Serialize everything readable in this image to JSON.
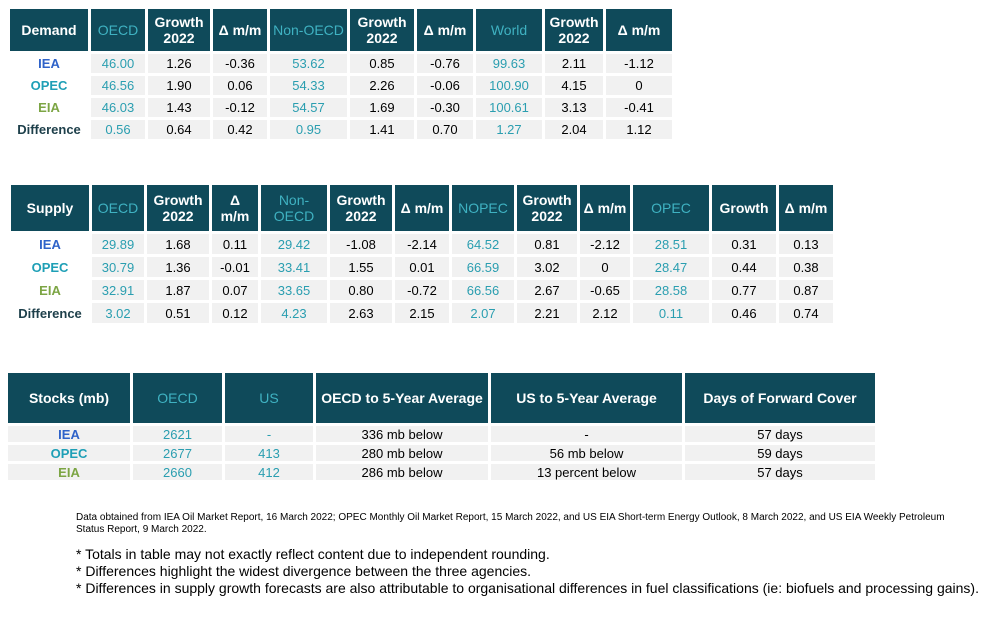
{
  "demand": {
    "headers": [
      "Demand",
      "OECD",
      "Growth 2022",
      "Δ m/m",
      "Non-OECD",
      "Growth 2022",
      "Δ m/m",
      "World",
      "Growth 2022",
      "Δ m/m"
    ],
    "rows": [
      {
        "label": "IEA",
        "values": [
          "46.00",
          "1.26",
          "-0.36",
          "53.62",
          "0.85",
          "-0.76",
          "99.63",
          "2.11",
          "-1.12"
        ]
      },
      {
        "label": "OPEC",
        "values": [
          "46.56",
          "1.90",
          "0.06",
          "54.33",
          "2.26",
          "-0.06",
          "100.90",
          "4.15",
          "0"
        ]
      },
      {
        "label": "EIA",
        "values": [
          "46.03",
          "1.43",
          "-0.12",
          "54.57",
          "1.69",
          "-0.30",
          "100.61",
          "3.13",
          "-0.41"
        ]
      },
      {
        "label": "Difference",
        "values": [
          "0.56",
          "0.64",
          "0.42",
          "0.95",
          "1.41",
          "0.70",
          "1.27",
          "2.04",
          "1.12"
        ]
      }
    ]
  },
  "supply": {
    "headers": [
      "Supply",
      "OECD",
      "Growth 2022",
      "Δ m/m",
      "Non-OECD",
      "Growth 2022",
      "Δ m/m",
      "NOPEC",
      "Growth 2022",
      "Δ m/m",
      "OPEC",
      "Growth",
      "Δ m/m"
    ],
    "rows": [
      {
        "label": "IEA",
        "values": [
          "29.89",
          "1.68",
          "0.11",
          "29.42",
          "-1.08",
          "-2.14",
          "64.52",
          "0.81",
          "-2.12",
          "28.51",
          "0.31",
          "0.13"
        ]
      },
      {
        "label": "OPEC",
        "values": [
          "30.79",
          "1.36",
          "-0.01",
          "33.41",
          "1.55",
          "0.01",
          "66.59",
          "3.02",
          "0",
          "28.47",
          "0.44",
          "0.38"
        ]
      },
      {
        "label": "EIA",
        "values": [
          "32.91",
          "1.87",
          "0.07",
          "33.65",
          "0.80",
          "-0.72",
          "66.56",
          "2.67",
          "-0.65",
          "28.58",
          "0.77",
          "0.87"
        ]
      },
      {
        "label": "Difference",
        "values": [
          "3.02",
          "0.51",
          "0.12",
          "4.23",
          "2.63",
          "2.15",
          "2.07",
          "2.21",
          "2.12",
          "0.11",
          "0.46",
          "0.74"
        ]
      }
    ]
  },
  "stocks": {
    "headers": [
      "Stocks (mb)",
      "OECD",
      "US",
      "OECD to 5-Year Average",
      "US to 5-Year Average",
      "Days of Forward Cover"
    ],
    "rows": [
      {
        "label": "IEA",
        "values": [
          "2621",
          "-",
          "336 mb below",
          "-",
          "57 days"
        ]
      },
      {
        "label": "OPEC",
        "values": [
          "2677",
          "413",
          "280 mb below",
          "56 mb below",
          "59 days"
        ]
      },
      {
        "label": "EIA",
        "values": [
          "2660",
          "412",
          "286 mb below",
          "13 percent below",
          "57 days"
        ]
      }
    ]
  },
  "source_note": "Data obtained from IEA Oil Market Report, 16 March 2022; OPEC Monthly Oil Market Report, 15 March 2022, and US EIA Short-term Energy Outlook, 8 March 2022, and US EIA Weekly Petroleum Status Report, 9 March 2022.",
  "notes": [
    "* Totals in table may not exactly reflect content due to independent rounding.",
    "* Differences highlight the widest divergence between the three agencies.",
    "* Differences in supply growth forecasts are also attributable to organisational differences in fuel classifications (ie: biofuels and processing gains)."
  ],
  "colors": {
    "header_bg": "#0f4a5a",
    "header_highlight_text": "#3fb2c2",
    "teal_value": "#2a9eb0",
    "iea": "#2f63c9",
    "opec": "#1e9fb6",
    "eia": "#7ca544",
    "cell_bg": "#f1f1f1"
  }
}
